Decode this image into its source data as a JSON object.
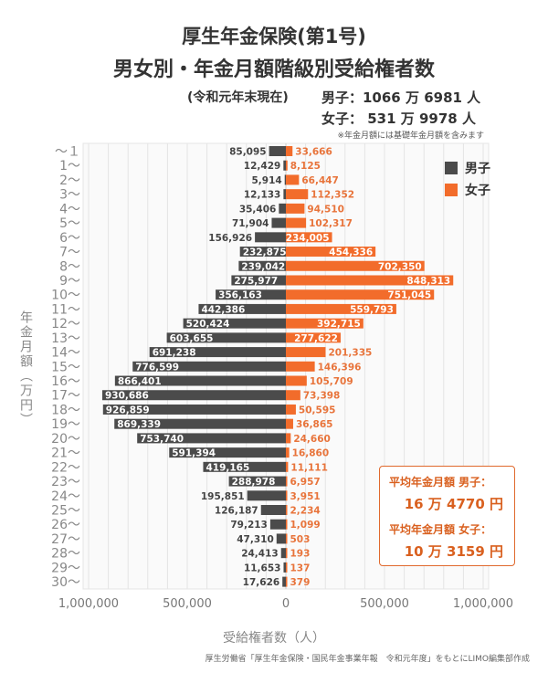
{
  "title_line1": "厚生年金保険(第1号)",
  "title_line2": "男女別・年金月額階級別受給権者数",
  "as_of": "(令和元年末現在)",
  "totals": {
    "male": "男子：1066 万 6981 人",
    "female": "女子：  531 万 9978 人"
  },
  "footnote": "※年金月額には基礎年金月額を含みます",
  "average_box": {
    "male_label": "平均年金月額 男子：",
    "male_value": "16 万 4770 円",
    "female_label": "平均年金月額 女子：",
    "female_value": "10 万 3159 円"
  },
  "source": "厚生労働省「厚生年金保険・国民年金事業年報　令和元年度」をもとにLIMO編集部作成",
  "colors": {
    "male": "#4b4b4b",
    "female": "#f26c2b",
    "female_label": "#e8743b",
    "grid": "#e4e4e4"
  },
  "chart_data": {
    "type": "bar",
    "orientation": "horizontal-diverging",
    "ylabel": "年金月額（万円）",
    "xlabel": "受給権者数（人）",
    "xlim": [
      -1000000,
      1000000
    ],
    "xticks": [
      "1,000,000",
      "500,000",
      "0",
      "500,000",
      "1,000,000"
    ],
    "grid": true,
    "legend_position": "top-right",
    "categories": [
      "～１",
      "1～",
      "2～",
      "3～",
      "4～",
      "5～",
      "6～",
      "7～",
      "8～",
      "9～",
      "10～",
      "11～",
      "12～",
      "13～",
      "14～",
      "15～",
      "16～",
      "17～",
      "18～",
      "19～",
      "20～",
      "21～",
      "22～",
      "23～",
      "24～",
      "25～",
      "26～",
      "27～",
      "28～",
      "29～",
      "30～"
    ],
    "series": [
      {
        "name": "男子",
        "side": "left",
        "values": [
          85095,
          12429,
          5914,
          12133,
          35406,
          71904,
          156926,
          232875,
          239042,
          275977,
          356163,
          442386,
          520424,
          603655,
          691238,
          776599,
          866401,
          930686,
          926859,
          869339,
          753740,
          591394,
          419165,
          288978,
          195851,
          126187,
          79213,
          47310,
          24413,
          11653,
          17626
        ]
      },
      {
        "name": "女子",
        "side": "right",
        "values": [
          33666,
          8125,
          66447,
          112352,
          94510,
          102317,
          234005,
          454336,
          702350,
          848313,
          751045,
          559793,
          392715,
          277622,
          201335,
          146396,
          105709,
          73398,
          50595,
          36865,
          24660,
          16860,
          11111,
          6957,
          3951,
          2234,
          1099,
          503,
          193,
          137,
          379
        ]
      }
    ]
  }
}
